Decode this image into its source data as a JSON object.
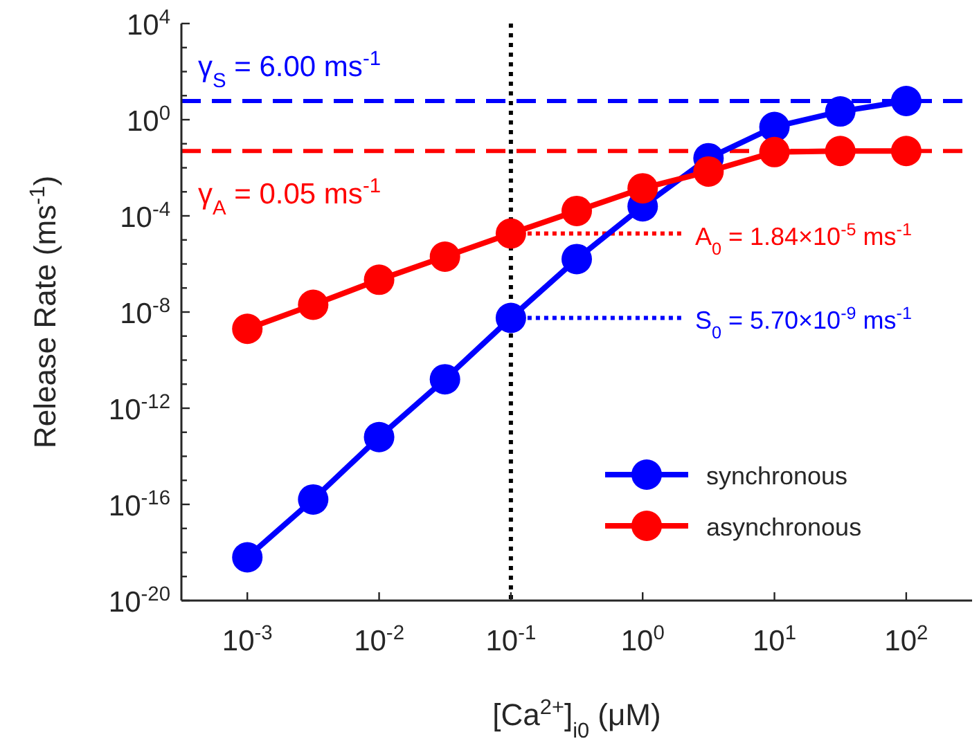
{
  "chart_data": {
    "type": "line",
    "xlabel": "[Ca$^{2+}$]$_{i0}$ (μM)",
    "ylabel": "Release Rate (ms$^{-1}$)",
    "x": [
      0.001,
      0.00316,
      0.01,
      0.0316,
      0.1,
      0.316,
      1,
      3.16,
      10,
      31.6,
      100
    ],
    "series": [
      {
        "name": "synchronous",
        "color": "#0000ff",
        "values": [
          6.3e-19,
          1.6e-16,
          6.3e-14,
          1.6e-11,
          5.7e-09,
          1.6e-06,
          0.00025,
          0.025,
          0.5,
          2.2,
          6.0
        ]
      },
      {
        "name": "asynchronous",
        "color": "#ff0000",
        "values": [
          2e-09,
          2e-08,
          2.2e-07,
          2e-06,
          1.84e-05,
          0.00016,
          0.0014,
          0.007,
          0.045,
          0.05,
          0.05
        ]
      }
    ],
    "log": "xy",
    "xlim": [
      0.000316,
      316
    ],
    "ylim": [
      1e-20,
      10000.0
    ],
    "xticks": [
      {
        "value": 0.001,
        "label": "10$^{-3}$"
      },
      {
        "value": 0.01,
        "label": "10$^{-2}$"
      },
      {
        "value": 0.1,
        "label": "10$^{-1}$"
      },
      {
        "value": 1,
        "label": "10$^{0}$"
      },
      {
        "value": 10,
        "label": "10$^{1}$"
      },
      {
        "value": 100,
        "label": "10$^{2}$"
      }
    ],
    "yticks": [
      {
        "value": 1e-20,
        "label": "10$^{-20}$"
      },
      {
        "value": 1e-19,
        "label": null
      },
      {
        "value": 1e-18,
        "label": null
      },
      {
        "value": 1e-17,
        "label": null
      },
      {
        "value": 1e-16,
        "label": "10$^{-16}$"
      },
      {
        "value": 1e-15,
        "label": null
      },
      {
        "value": 1e-14,
        "label": null
      },
      {
        "value": 1e-13,
        "label": null
      },
      {
        "value": 1e-12,
        "label": "10$^{-12}$"
      },
      {
        "value": 1e-11,
        "label": null
      },
      {
        "value": 1e-10,
        "label": null
      },
      {
        "value": 1e-09,
        "label": null
      },
      {
        "value": 1e-08,
        "label": "10$^{-8}$"
      },
      {
        "value": 1e-07,
        "label": null
      },
      {
        "value": 1e-06,
        "label": null
      },
      {
        "value": 1e-05,
        "label": null
      },
      {
        "value": 0.0001,
        "label": "10$^{-4}$"
      },
      {
        "value": 0.001,
        "label": null
      },
      {
        "value": 0.01,
        "label": null
      },
      {
        "value": 0.1,
        "label": null
      },
      {
        "value": 1,
        "label": "10$^{0}$"
      },
      {
        "value": 10,
        "label": null
      },
      {
        "value": 100,
        "label": null
      },
      {
        "value": 1000,
        "label": null
      },
      {
        "value": 10000,
        "label": "10$^{4}$"
      }
    ],
    "ref_lines": [
      {
        "axis": "y",
        "value": 6.0,
        "label": "γ$_{S}$ = 6.00 ms$^{-1}$",
        "color": "#0000ff",
        "line_style": "dashed"
      },
      {
        "axis": "y",
        "value": 0.05,
        "label": "γ$_{A}$ = 0.05 ms$^{-1}$",
        "color": "#ff0000",
        "line_style": "dashed"
      },
      {
        "axis": "x",
        "value": 0.1,
        "color": "#000000",
        "line_style": "dotted"
      }
    ],
    "annotations": [
      {
        "text": "A$_{0}$ = 1.84×10$^{-5}$ ms$^{-1}$",
        "x": 0.1,
        "y": 1.84e-05
      },
      {
        "text": "S$_{0}$ = 5.70×10$^{-9}$ ms$^{-1}$",
        "x": 0.1,
        "y": 5.7e-09
      }
    ],
    "marker": "circle",
    "line_style": "solid",
    "grid": false,
    "legend": "bottom right"
  }
}
